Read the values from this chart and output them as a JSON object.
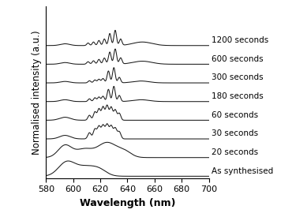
{
  "xlabel": "Wavelength (nm)",
  "ylabel": "Normalised intensity (a.u.)",
  "xlim": [
    580,
    700
  ],
  "ylim_min": -0.05,
  "labels": [
    "As synthesised",
    "20 seconds",
    "30 seconds",
    "60 seconds",
    "180 seconds",
    "300 seconds",
    "600 seconds",
    "1200 seconds"
  ],
  "offsets": [
    0.0,
    0.55,
    1.1,
    1.65,
    2.2,
    2.75,
    3.3,
    3.85
  ],
  "line_color": "#1a1a1a",
  "background_color": "#ffffff",
  "label_fontsize": 7.5,
  "axis_label_fontsize": 9,
  "tick_fontsize": 8
}
